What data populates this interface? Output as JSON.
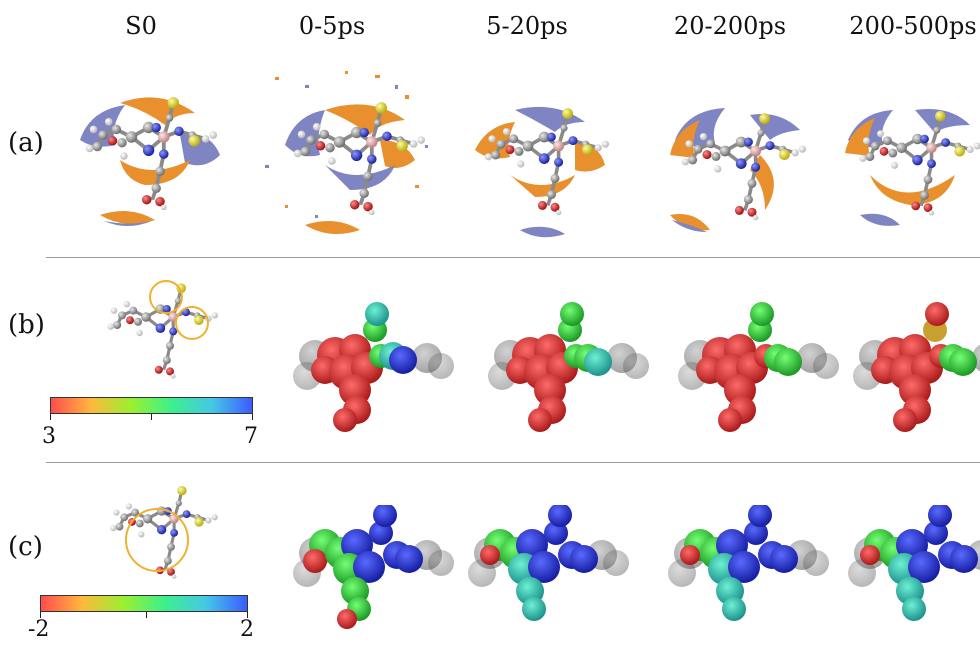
{
  "columns": [
    "S0",
    "0-5ps",
    "5-20ps",
    "20-200ps",
    "200-500ps"
  ],
  "rows": [
    {
      "label": "(a)"
    },
    {
      "label": "(b)",
      "colorbar": {
        "min": "3",
        "max": "7",
        "gradient": [
          "#ff4d4d",
          "#ffb83d",
          "#9bf030",
          "#3cf08c",
          "#46c8e6",
          "#3c5cff"
        ]
      }
    },
    {
      "label": "(c)",
      "colorbar": {
        "min": "-2",
        "max": "2",
        "gradient": [
          "#ff4d4d",
          "#ffb83d",
          "#9bf030",
          "#3cf08c",
          "#46c8e6",
          "#3c5cff"
        ]
      }
    }
  ],
  "colors": {
    "orange_isosurface": "#e8902e",
    "blue_isosurface": "#7f84c2",
    "carbon": "#8a8a8a",
    "nitrogen": "#2e3ccf",
    "sulfur": "#e8e02a",
    "oxygen": "#d42a2a",
    "metal": "#e7b0b0",
    "highlight_circle": "#f0b030"
  }
}
